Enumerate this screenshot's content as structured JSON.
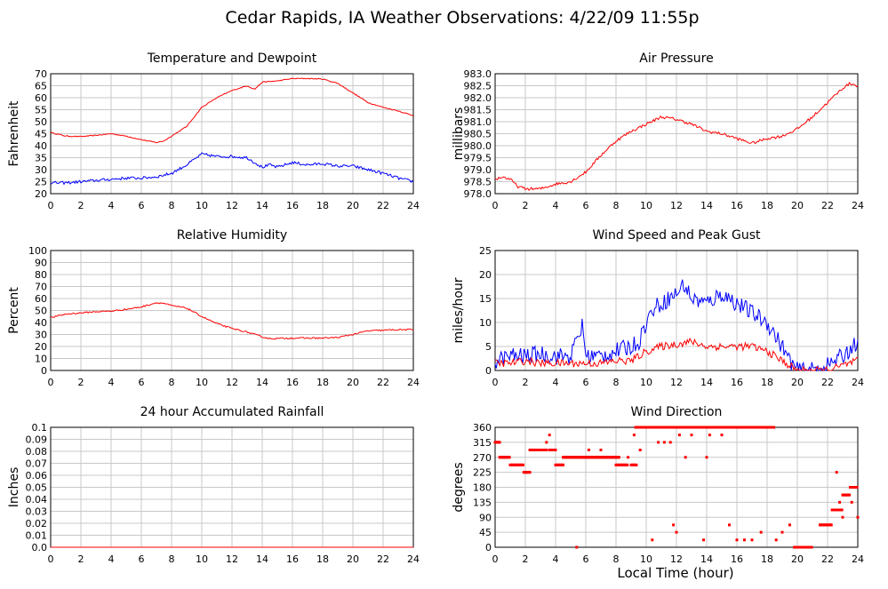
{
  "title": "Cedar Rapids, IA Weather Observations: 4/22/09 11:55p",
  "footer_xlabel": "Local Time (hour)",
  "colors": {
    "series_red": "#ff0000",
    "series_blue": "#0000ff",
    "grid": "#c8c8c8"
  },
  "chart_data": [
    {
      "id": "temp",
      "type": "line",
      "title": "Temperature and Dewpoint",
      "xlabel": "",
      "ylabel": "Fahrenheit",
      "xlim": [
        0,
        24
      ],
      "ylim": [
        20,
        70
      ],
      "xticks": [
        0,
        2,
        4,
        6,
        8,
        10,
        12,
        14,
        16,
        18,
        20,
        22,
        24
      ],
      "yticks": [
        20,
        25,
        30,
        35,
        40,
        45,
        50,
        55,
        60,
        65,
        70
      ],
      "ytick_decimals": 0,
      "grid": true,
      "series": [
        {
          "color": "red",
          "noise": 0.2,
          "points": [
            [
              0,
              45.5
            ],
            [
              1,
              44
            ],
            [
              2,
              43.8
            ],
            [
              3,
              44.3
            ],
            [
              4,
              45
            ],
            [
              5,
              44
            ],
            [
              6,
              42.5
            ],
            [
              7,
              41.3
            ],
            [
              7.5,
              42
            ],
            [
              8,
              44
            ],
            [
              9,
              48
            ],
            [
              10,
              56
            ],
            [
              11,
              60
            ],
            [
              12,
              63
            ],
            [
              13,
              65
            ],
            [
              13.5,
              63.5
            ],
            [
              14,
              66.5
            ],
            [
              15,
              67
            ],
            [
              16,
              68
            ],
            [
              17,
              68
            ],
            [
              18,
              67.8
            ],
            [
              19,
              66
            ],
            [
              20,
              62
            ],
            [
              21,
              58
            ],
            [
              22,
              56
            ],
            [
              23,
              54.5
            ],
            [
              24,
              52.5
            ]
          ]
        },
        {
          "color": "blue",
          "noise": 0.6,
          "points": [
            [
              0,
              24.5
            ],
            [
              1,
              24.5
            ],
            [
              2,
              25
            ],
            [
              3,
              25.5
            ],
            [
              4,
              26
            ],
            [
              5,
              26.5
            ],
            [
              6,
              26.5
            ],
            [
              7,
              27
            ],
            [
              8,
              28.5
            ],
            [
              9,
              32
            ],
            [
              10,
              36.5
            ],
            [
              11,
              35.5
            ],
            [
              12,
              35.5
            ],
            [
              13,
              35
            ],
            [
              14,
              31
            ],
            [
              14.5,
              32
            ],
            [
              15,
              31
            ],
            [
              16,
              33
            ],
            [
              17,
              32
            ],
            [
              18,
              32.5
            ],
            [
              19,
              31.5
            ],
            [
              20,
              31.5
            ],
            [
              21,
              30
            ],
            [
              22,
              28.5
            ],
            [
              23,
              26.5
            ],
            [
              24,
              25
            ]
          ]
        }
      ]
    },
    {
      "id": "pressure",
      "type": "line",
      "title": "Air Pressure",
      "xlabel": "",
      "ylabel": "millibars",
      "xlim": [
        0,
        24
      ],
      "ylim": [
        978.0,
        983.0
      ],
      "xticks": [
        0,
        2,
        4,
        6,
        8,
        10,
        12,
        14,
        16,
        18,
        20,
        22,
        24
      ],
      "yticks": [
        978.0,
        978.5,
        979.0,
        979.5,
        980.0,
        980.5,
        981.0,
        981.5,
        982.0,
        982.5,
        983.0
      ],
      "ytick_decimals": 1,
      "grid": true,
      "series": [
        {
          "color": "red",
          "noise": 0.06,
          "points": [
            [
              0,
              978.6
            ],
            [
              0.5,
              978.7
            ],
            [
              1,
              978.6
            ],
            [
              1.5,
              978.3
            ],
            [
              2,
              978.2
            ],
            [
              3,
              978.2
            ],
            [
              4,
              978.4
            ],
            [
              5,
              978.5
            ],
            [
              6,
              978.9
            ],
            [
              7,
              979.6
            ],
            [
              8,
              980.2
            ],
            [
              9,
              980.6
            ],
            [
              10,
              980.9
            ],
            [
              11,
              981.2
            ],
            [
              12,
              981.1
            ],
            [
              13,
              980.9
            ],
            [
              14,
              980.6
            ],
            [
              15,
              980.5
            ],
            [
              16,
              980.3
            ],
            [
              17,
              980.1
            ],
            [
              18,
              980.3
            ],
            [
              19,
              980.4
            ],
            [
              20,
              980.7
            ],
            [
              21,
              981.2
            ],
            [
              22,
              981.8
            ],
            [
              23,
              982.4
            ],
            [
              23.5,
              982.6
            ],
            [
              24,
              982.5
            ]
          ]
        }
      ]
    },
    {
      "id": "humidity",
      "type": "line",
      "title": "Relative Humidity",
      "xlabel": "",
      "ylabel": "Percent",
      "xlim": [
        0,
        24
      ],
      "ylim": [
        0,
        100
      ],
      "xticks": [
        0,
        2,
        4,
        6,
        8,
        10,
        12,
        14,
        16,
        18,
        20,
        22,
        24
      ],
      "yticks": [
        0,
        10,
        20,
        30,
        40,
        50,
        60,
        70,
        80,
        90,
        100
      ],
      "ytick_decimals": 0,
      "grid": true,
      "series": [
        {
          "color": "red",
          "noise": 0.6,
          "points": [
            [
              0,
              44
            ],
            [
              1,
              47
            ],
            [
              2,
              48
            ],
            [
              3,
              49
            ],
            [
              4,
              49.5
            ],
            [
              5,
              51
            ],
            [
              6,
              53
            ],
            [
              7,
              56.5
            ],
            [
              7.5,
              56
            ],
            [
              8,
              54
            ],
            [
              9,
              52
            ],
            [
              10,
              45
            ],
            [
              11,
              39
            ],
            [
              12,
              35
            ],
            [
              13,
              32
            ],
            [
              14,
              28
            ],
            [
              14.5,
              26.5
            ],
            [
              16,
              27
            ],
            [
              18,
              27
            ],
            [
              19,
              27.5
            ],
            [
              20,
              30
            ],
            [
              21,
              33
            ],
            [
              22,
              33.5
            ],
            [
              23,
              34
            ],
            [
              24,
              34
            ]
          ]
        }
      ]
    },
    {
      "id": "wind",
      "type": "line",
      "title": "Wind Speed and Peak Gust",
      "xlabel": "",
      "ylabel": "miles/hour",
      "xlim": [
        0,
        24
      ],
      "ylim": [
        0,
        25
      ],
      "xticks": [
        0,
        2,
        4,
        6,
        8,
        10,
        12,
        14,
        16,
        18,
        20,
        22,
        24
      ],
      "yticks": [
        0,
        5,
        10,
        15,
        20,
        25
      ],
      "ytick_decimals": 0,
      "grid": true,
      "series": [
        {
          "color": "blue",
          "noise": 1.8,
          "points": [
            [
              0,
              2
            ],
            [
              1,
              3
            ],
            [
              2,
              3
            ],
            [
              3,
              3.5
            ],
            [
              4,
              3
            ],
            [
              5,
              3
            ],
            [
              5.8,
              9.5
            ],
            [
              6,
              3
            ],
            [
              7,
              3
            ],
            [
              8,
              4
            ],
            [
              9,
              5
            ],
            [
              9.5,
              6
            ],
            [
              10,
              10
            ],
            [
              10.5,
              13
            ],
            [
              11,
              14
            ],
            [
              12,
              16
            ],
            [
              12.5,
              18
            ],
            [
              13,
              15
            ],
            [
              14,
              14
            ],
            [
              15,
              16
            ],
            [
              16,
              14
            ],
            [
              17,
              12
            ],
            [
              18,
              10
            ],
            [
              19,
              5
            ],
            [
              19.5,
              2
            ],
            [
              20,
              0
            ],
            [
              21,
              0
            ],
            [
              22,
              1
            ],
            [
              23,
              3
            ],
            [
              24,
              6
            ]
          ]
        },
        {
          "color": "red",
          "noise": 0.8,
          "points": [
            [
              0,
              1.5
            ],
            [
              1,
              1.5
            ],
            [
              2,
              2
            ],
            [
              3,
              1.5
            ],
            [
              4,
              1.5
            ],
            [
              5,
              1.5
            ],
            [
              6,
              1.5
            ],
            [
              7,
              1.5
            ],
            [
              8,
              2
            ],
            [
              9,
              2
            ],
            [
              10,
              4
            ],
            [
              11,
              5
            ],
            [
              12,
              5.5
            ],
            [
              13,
              6
            ],
            [
              14,
              5
            ],
            [
              15,
              5
            ],
            [
              16,
              5
            ],
            [
              17,
              5
            ],
            [
              18,
              4
            ],
            [
              19,
              2
            ],
            [
              19.5,
              1
            ],
            [
              20,
              0
            ],
            [
              22,
              0
            ],
            [
              23,
              1
            ],
            [
              24,
              2
            ]
          ]
        }
      ]
    },
    {
      "id": "rain",
      "type": "line",
      "title": "24 hour Accumulated Rainfall",
      "xlabel": "",
      "ylabel": "Inches",
      "xlim": [
        0,
        24
      ],
      "ylim": [
        0.0,
        0.1
      ],
      "xticks": [
        0,
        2,
        4,
        6,
        8,
        10,
        12,
        14,
        16,
        18,
        20,
        22,
        24
      ],
      "yticks": [
        0.0,
        0.01,
        0.02,
        0.03,
        0.04,
        0.05,
        0.06,
        0.07,
        0.08,
        0.09,
        0.1
      ],
      "ytick_labels": [
        "0.0",
        "0.01",
        "0.02",
        "0.03",
        "0.04",
        "0.05",
        "0.06",
        "0.07",
        "0.08",
        "0.09",
        "0.1"
      ],
      "grid": true,
      "series": [
        {
          "color": "red",
          "noise": 0,
          "points": [
            [
              0,
              0
            ],
            [
              24,
              0
            ]
          ]
        }
      ]
    },
    {
      "id": "direction",
      "type": "scatter",
      "title": "Wind Direction",
      "xlabel": "Local Time (hour)",
      "ylabel": "degrees",
      "xlim": [
        0,
        24
      ],
      "ylim": [
        0,
        360
      ],
      "xticks": [
        0,
        2,
        4,
        6,
        8,
        10,
        12,
        14,
        16,
        18,
        20,
        22,
        24
      ],
      "yticks": [
        0,
        45,
        90,
        135,
        180,
        225,
        270,
        315,
        360
      ],
      "ytick_decimals": 0,
      "grid": true,
      "series": [
        {
          "color": "red",
          "runs": [
            [
              0,
              0.3,
              315
            ],
            [
              0.3,
              1.0,
              270
            ],
            [
              1.0,
              1.9,
              247
            ],
            [
              1.9,
              2.3,
              225
            ],
            [
              2.3,
              3.4,
              292
            ],
            [
              3.6,
              4.0,
              292
            ],
            [
              4.0,
              4.5,
              247
            ],
            [
              4.5,
              6.0,
              270
            ],
            [
              6.0,
              7.0,
              270
            ],
            [
              7.0,
              8.2,
              270
            ],
            [
              8.0,
              8.8,
              247
            ],
            [
              9.0,
              9.4,
              247
            ],
            [
              9.3,
              10.5,
              360
            ],
            [
              10.5,
              12.5,
              360
            ],
            [
              12.5,
              14.5,
              360
            ],
            [
              14.5,
              18.5,
              360
            ],
            [
              19.8,
              21.0,
              0
            ],
            [
              21.5,
              22.3,
              67
            ],
            [
              22.3,
              23.0,
              112
            ],
            [
              23.0,
              23.5,
              157
            ],
            [
              23.5,
              24,
              180
            ]
          ],
          "dots": [
            [
              0.1,
              315
            ],
            [
              3.6,
              337
            ],
            [
              3.4,
              315
            ],
            [
              5.4,
              0
            ],
            [
              6.2,
              292
            ],
            [
              7.0,
              292
            ],
            [
              8.8,
              270
            ],
            [
              9.2,
              337
            ],
            [
              9.6,
              292
            ],
            [
              10.4,
              22
            ],
            [
              10.8,
              315
            ],
            [
              11.2,
              315
            ],
            [
              11.6,
              315
            ],
            [
              11.8,
              67
            ],
            [
              12.0,
              45
            ],
            [
              12.2,
              337
            ],
            [
              12.6,
              270
            ],
            [
              13.0,
              337
            ],
            [
              13.8,
              22
            ],
            [
              14.0,
              270
            ],
            [
              14.2,
              337
            ],
            [
              15.0,
              337
            ],
            [
              15.5,
              67
            ],
            [
              16.0,
              22
            ],
            [
              16.5,
              22
            ],
            [
              17.0,
              22
            ],
            [
              17.6,
              45
            ],
            [
              18.6,
              22
            ],
            [
              19.0,
              45
            ],
            [
              19.5,
              67
            ],
            [
              20.2,
              0
            ],
            [
              22.6,
              225
            ],
            [
              22.8,
              135
            ],
            [
              23.0,
              90
            ],
            [
              23.6,
              135
            ],
            [
              24,
              90
            ]
          ]
        }
      ]
    }
  ]
}
